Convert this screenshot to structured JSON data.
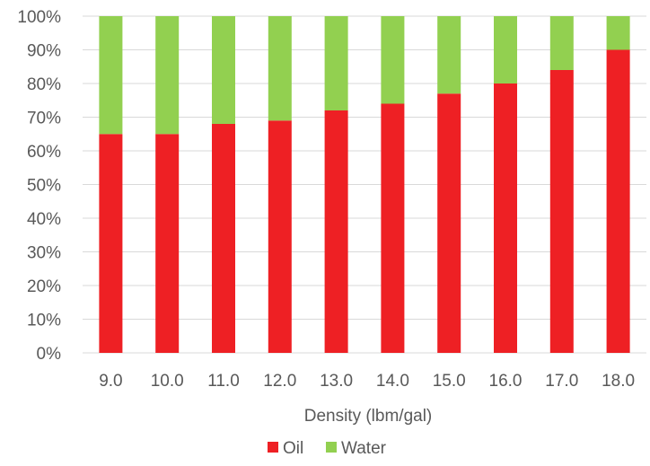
{
  "chart_data": {
    "type": "bar",
    "stacked": true,
    "categories": [
      "9.0",
      "10.0",
      "11.0",
      "12.0",
      "13.0",
      "14.0",
      "15.0",
      "16.0",
      "17.0",
      "18.0"
    ],
    "series": [
      {
        "name": "Oil",
        "color": "#ee2024",
        "values": [
          65,
          65,
          68,
          69,
          72,
          74,
          77,
          80,
          84,
          90
        ]
      },
      {
        "name": "Water",
        "color": "#92d050",
        "values": [
          35,
          35,
          32,
          31,
          28,
          26,
          23,
          20,
          16,
          10
        ]
      }
    ],
    "xlabel": "Density (lbm/gal)",
    "ylabel": "",
    "ylim": [
      0,
      100
    ],
    "yticks": [
      "0%",
      "10%",
      "20%",
      "30%",
      "40%",
      "50%",
      "60%",
      "70%",
      "80%",
      "90%",
      "100%"
    ],
    "grid": true,
    "legend_position": "bottom"
  }
}
